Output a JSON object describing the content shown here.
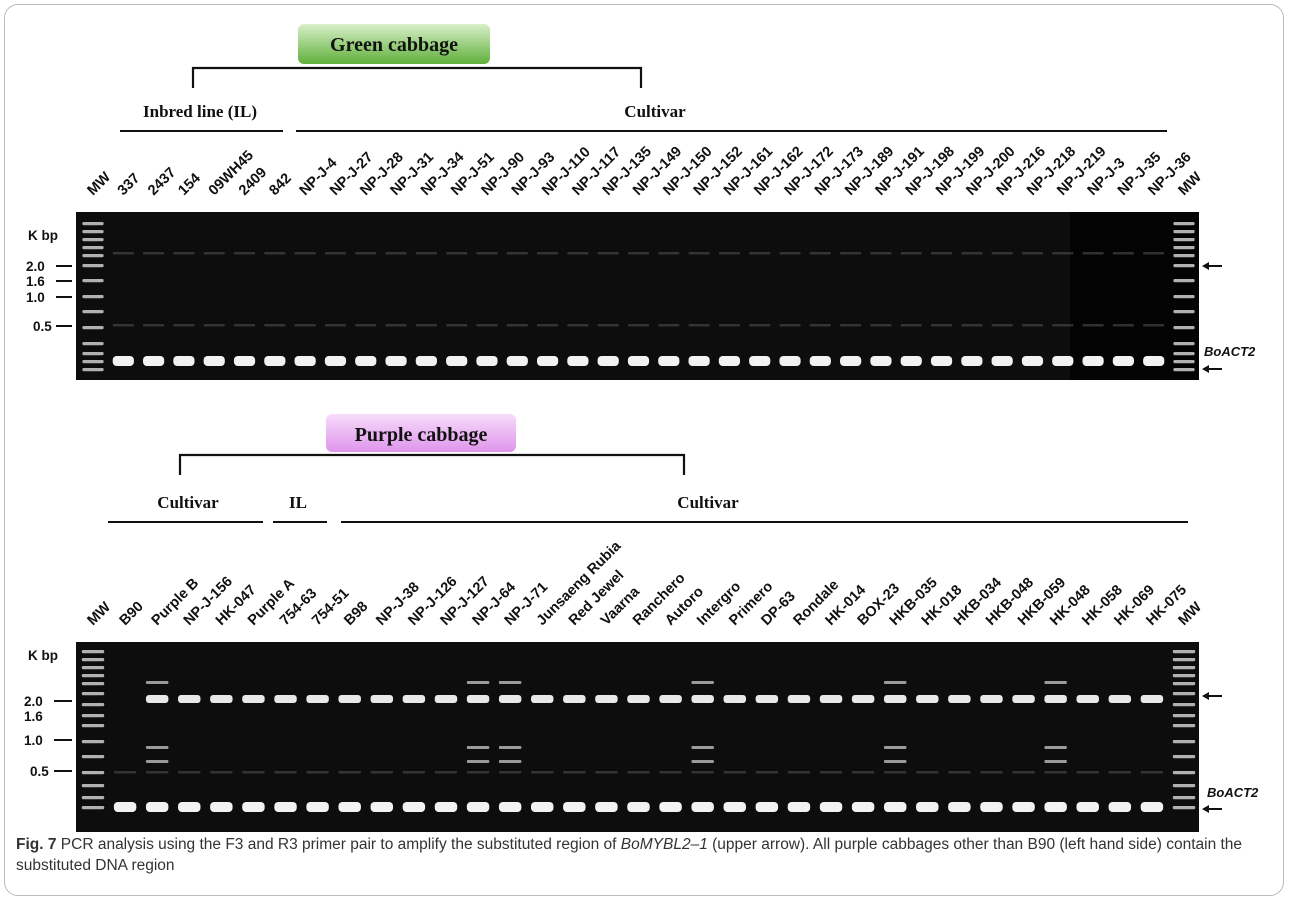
{
  "top_panel": {
    "title": "Green cabbage",
    "group_left": "Inbred line (IL)",
    "group_right": "Cultivar",
    "lanes": [
      "MW",
      "337",
      "2437",
      "154",
      "09WH45",
      "2409",
      "842",
      "NP-J-4",
      "NP-J-27",
      "NP-J-28",
      "NP-J-31",
      "NP-J-34",
      "NP-J-51",
      "NP-J-90",
      "NP-J-93",
      "NP-J-110",
      "NP-J-117",
      "NP-J-135",
      "NP-J-149",
      "NP-J-150",
      "NP-J-152",
      "NP-J-161",
      "NP-J-162",
      "NP-J-172",
      "NP-J-173",
      "NP-J-189",
      "NP-J-191",
      "NP-J-198",
      "NP-J-199",
      "NP-J-200",
      "NP-J-216",
      "NP-J-218",
      "NP-J-219",
      "NP-J-3",
      "NP-J-35",
      "NP-J-36",
      "MW"
    ],
    "size_unit": "K bp",
    "size_markers": [
      "2.0",
      "1.6",
      "1.0",
      "0.5"
    ],
    "band_label": "BoACT2"
  },
  "bottom_panel": {
    "title": "Purple cabbage",
    "group_left": "Cultivar",
    "group_mid": "IL",
    "group_right": "Cultivar",
    "lanes": [
      "MW",
      "B90",
      "Purple B",
      "NP-J-156",
      "HK-047",
      "Purple A",
      "754-63",
      "754-51",
      "B98",
      "NP-J-38",
      "NP-J-126",
      "NP-J-127",
      "NP-J-64",
      "NP-J-71",
      "Junsaeng Rubia",
      "Red Jewel",
      "Vaarna",
      "Ranchero",
      "Autoro",
      "Intergro",
      "Primero",
      "DP-63",
      "Rondale",
      "HK-014",
      "BOX-23",
      "HKB-035",
      "HK-018",
      "HKB-034",
      "HKB-048",
      "HKB-059",
      "HK-048",
      "HK-058",
      "HK-069",
      "HK-075",
      "MW"
    ],
    "size_unit": "K bp",
    "size_markers": [
      "2.0",
      "1.6",
      "1.0",
      "0.5"
    ],
    "band_label": "BoACT2"
  },
  "caption": {
    "fig_label": "Fig. 7",
    "text_1": " PCR analysis using the F3 and R3 primer pair to amplify the substituted region of ",
    "gene": "BoMYBL2–1",
    "text_2": " (upper arrow). All purple cabbages other than B90 (left hand side) contain the substituted DNA region"
  },
  "colors": {
    "green_box": "#7cc45a",
    "purple_box": "#e9a8f0",
    "gel": "#0d0d0d"
  }
}
